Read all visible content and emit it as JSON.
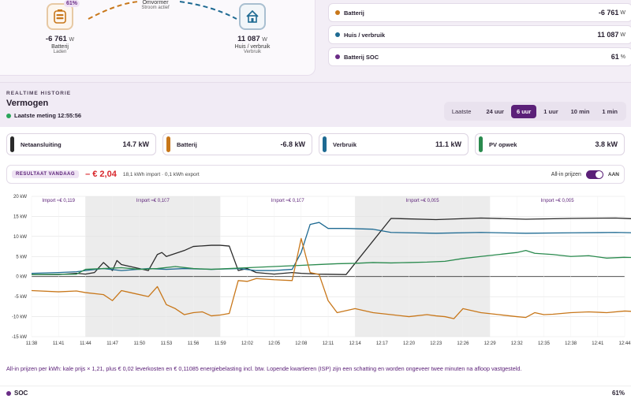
{
  "colors": {
    "grid": "#2a2a2a",
    "battery": "#c8771a",
    "usage": "#1e6a92",
    "pv": "#2a8a4e",
    "soc": "#6a2c86",
    "accent": "#5b2078",
    "negative": "#d8262b"
  },
  "flow": {
    "inverter": {
      "title": "Omvormer",
      "status": "Stroom actief"
    },
    "battery": {
      "icon": "battery-icon",
      "badge": "61%",
      "value": "-6 761",
      "unit": "W",
      "label": "Batterij",
      "sub": "Laden"
    },
    "house": {
      "icon": "house-icon",
      "value": "11 087",
      "unit": "W",
      "label": "Huis / verbruik",
      "sub": "Verbruik"
    }
  },
  "stats": [
    {
      "label": "Batterij",
      "value": "-6 761",
      "unit": "W",
      "color": "#c8771a"
    },
    {
      "label": "Huis / verbruik",
      "value": "11 087",
      "unit": "W",
      "color": "#1e6a92"
    },
    {
      "label": "Batterij SOC",
      "value": "61",
      "unit": "%",
      "color": "#6a2c86"
    }
  ],
  "history": {
    "eyebrow": "REALTIME HISTORIE",
    "title": "Vermogen",
    "last_measurement": "Laatste meting 12:55:56",
    "range": {
      "label": "Laatste",
      "options": [
        "24 uur",
        "6 uur",
        "1 uur",
        "10 min",
        "1 min"
      ],
      "selected": "6 uur"
    },
    "cards": [
      {
        "label": "Netaansluiting",
        "value": "14.7 kW",
        "color": "#2a2a2a"
      },
      {
        "label": "Batterij",
        "value": "-6.8 kW",
        "color": "#c8771a"
      },
      {
        "label": "Verbruik",
        "value": "11.1 kW",
        "color": "#1e6a92"
      },
      {
        "label": "PV opwek",
        "value": "3.8 kW",
        "color": "#2a8a4e"
      }
    ],
    "result": {
      "badge": "RESULTAAT VANDAAG",
      "amount": "– € 2,04",
      "detail": "18,1 kWh import · 0,1 kWh export",
      "toggle_label": "All-in prijzen",
      "toggle_state": "AAN"
    },
    "footnote": "All-in prijzen per kWh: kale prijs × 1,21, plus € 0,02 leverkosten en € 0,11085 energiebelasting incl. btw. Lopende kwartieren (ISP) zijn een schatting en worden ongeveer twee minuten na afloop vastgesteld.",
    "soc": {
      "label": "SOC",
      "value": "61%"
    }
  },
  "chart_data": {
    "type": "line",
    "ylabel": "kW",
    "ylim": [
      -15,
      20
    ],
    "yticks": [
      "20 kW",
      "15 kW",
      "10 kW",
      "5 kW",
      "0 kW",
      "-5 kW",
      "-10 kW",
      "-15 kW"
    ],
    "xticks": [
      "11:38",
      "11:41",
      "11:44",
      "11:47",
      "11:50",
      "11:53",
      "11:56",
      "11:59",
      "12:02",
      "12:05",
      "12:08",
      "12:11",
      "12:14",
      "12:17",
      "12:20",
      "12:23",
      "12:26",
      "12:29",
      "12:32",
      "12:35",
      "12:38",
      "12:41",
      "12:44"
    ],
    "price_bands": [
      {
        "label": "Import ≈€ 0,119",
        "start": "11:38",
        "end": "11:44",
        "shaded": false
      },
      {
        "label": "Import ≈€ 0,107",
        "start": "11:44",
        "end": "11:59",
        "shaded": true
      },
      {
        "label": "Import ≈€ 0,107",
        "start": "11:59",
        "end": "12:14",
        "shaded": false
      },
      {
        "label": "Import ≈€ 0,095",
        "start": "12:14",
        "end": "12:29",
        "shaded": true
      },
      {
        "label": "Import ≈€ 0,095",
        "start": "12:29",
        "end": "12:44",
        "shaded": false
      }
    ],
    "series": [
      {
        "name": "Netaansluiting",
        "color": "#2a2a2a",
        "x": [
          0,
          3,
          5,
          6,
          7,
          8,
          9,
          9.5,
          10,
          13,
          14,
          14.5,
          15,
          17,
          18,
          20,
          21,
          22,
          23,
          24,
          25,
          26,
          27,
          28,
          29,
          30,
          32,
          35,
          40,
          45,
          50,
          55,
          60,
          65,
          69,
          70,
          71,
          72,
          75,
          80,
          84,
          85,
          86,
          86.5
        ],
        "y": [
          0.5,
          0.5,
          0.8,
          0.6,
          1,
          3.5,
          1.5,
          4,
          3,
          1.5,
          5.5,
          6,
          5,
          6.5,
          7.5,
          7.8,
          7.8,
          7.6,
          1.5,
          2,
          1,
          0.8,
          0.6,
          0.8,
          1,
          0.8,
          0.6,
          0.5,
          14.5,
          14.2,
          14.6,
          14.3,
          14.5,
          14.6,
          14.2,
          14.5,
          11.5,
          14.5,
          14.3,
          14.6,
          14.2,
          14.4,
          14.6,
          14.5
        ]
      },
      {
        "name": "Verbruik",
        "color": "#1e6a92",
        "x": [
          0,
          3,
          5,
          6,
          8,
          10,
          13,
          15,
          17,
          20,
          23,
          25,
          27,
          29,
          30,
          31,
          32,
          33,
          35,
          38,
          40,
          45,
          50,
          55,
          60,
          65,
          70,
          75,
          80,
          85,
          86.5
        ],
        "y": [
          0.8,
          1,
          1.2,
          1.5,
          2,
          1.5,
          2,
          1.8,
          2,
          1.8,
          2,
          1.5,
          1.5,
          1.8,
          6,
          13,
          13.5,
          12,
          12,
          11.8,
          11,
          10.8,
          11,
          10.8,
          10.9,
          11,
          10.8,
          10.9,
          10.7,
          10.9,
          11.1
        ]
      },
      {
        "name": "PV opwek",
        "color": "#2a8a4e",
        "x": [
          0,
          5,
          6,
          8,
          10,
          12,
          14,
          16,
          18,
          20,
          22,
          24,
          26,
          28,
          30,
          32,
          34,
          36,
          38,
          40,
          42,
          44,
          46,
          48,
          50,
          52,
          54,
          55,
          56,
          58,
          60,
          62,
          64,
          66,
          68,
          70,
          72,
          74,
          76,
          78,
          80,
          82,
          84,
          86.5
        ],
        "y": [
          0.5,
          0.6,
          1.8,
          2,
          2.2,
          1.8,
          2,
          2.5,
          2,
          1.8,
          2,
          2.2,
          2.4,
          2.6,
          2.8,
          3,
          3.2,
          3.3,
          3.5,
          3.4,
          3.5,
          3.6,
          3.8,
          4.5,
          5,
          5.5,
          6,
          6.5,
          5.8,
          5.5,
          5,
          5.2,
          4.6,
          4.8,
          4.7,
          5,
          5.1,
          4.9,
          5,
          5.2,
          5.3,
          5.1,
          5.4,
          3.8
        ]
      },
      {
        "name": "Batterij",
        "color": "#c8771a",
        "x": [
          0,
          3,
          5,
          6,
          8,
          9,
          10,
          11,
          13,
          14,
          15,
          16,
          17,
          18,
          19,
          20,
          21,
          22,
          23,
          24,
          25,
          27,
          29,
          30,
          31,
          32,
          33,
          34,
          36,
          38,
          40,
          42,
          44,
          45,
          46,
          47,
          48,
          50,
          52,
          54,
          55,
          56,
          57,
          58,
          60,
          62,
          64,
          66,
          68,
          70,
          72,
          74,
          76,
          78,
          80,
          82,
          84,
          86,
          86.5
        ],
        "y": [
          -3.5,
          -3.8,
          -3.6,
          -4,
          -4.5,
          -6,
          -3.5,
          -4,
          -5,
          -2.5,
          -7,
          -8,
          -9.5,
          -9,
          -8.8,
          -9.8,
          -9.6,
          -9.2,
          -1,
          -1.2,
          -0.5,
          -0.8,
          -1,
          9.5,
          1,
          0.5,
          -6,
          -9,
          -8,
          -9,
          -9.5,
          -10,
          -9.5,
          -9.8,
          -10,
          -10.5,
          -8,
          -9,
          -9.5,
          -10,
          -10.2,
          -9,
          -9.5,
          -9.4,
          -9,
          -8.8,
          -9,
          -8.6,
          -8.8,
          -8.5,
          -8.7,
          -8.2,
          -8.4,
          -8.5,
          -8.8,
          -7.5,
          -8,
          -7.6,
          -6.8
        ]
      }
    ]
  }
}
